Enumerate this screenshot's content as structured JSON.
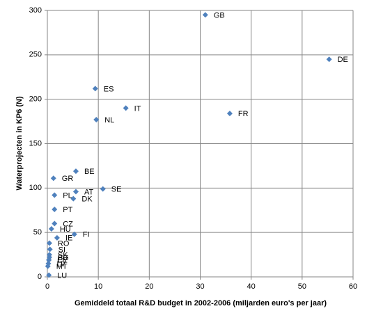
{
  "chart_data": {
    "type": "scatter",
    "x_label": "Gemiddeld totaal R&D budget in 2002-2006 (miljarden euro's per jaar)",
    "y_label": "Waterprojecten in KP6 (N)",
    "color": "#4f81bd",
    "grid": true,
    "xlim": [
      0,
      60
    ],
    "xticks": [
      0,
      10,
      20,
      30,
      40,
      50,
      60
    ],
    "ylim": [
      0,
      300
    ],
    "yticks": [
      0,
      50,
      100,
      150,
      200,
      250,
      300
    ],
    "labels": [
      "GB",
      "DE",
      "ES",
      "IT",
      "NL",
      "FR",
      "BE",
      "GR",
      "SE",
      "AT",
      "PL",
      "DK",
      "PT",
      "CZ",
      "HU",
      "FI",
      "IE",
      "RO",
      "SI",
      "SK",
      "BG",
      "EE",
      "CY",
      "LV",
      "MT",
      "LU"
    ],
    "x": [
      31.0,
      55.3,
      9.4,
      15.4,
      9.6,
      35.8,
      5.6,
      1.2,
      10.9,
      5.6,
      1.4,
      5.1,
      1.4,
      1.4,
      0.8,
      5.3,
      1.9,
      0.4,
      0.5,
      0.4,
      0.4,
      0.3,
      0.3,
      0.2,
      0.1,
      0.3
    ],
    "values": [
      295,
      245,
      212,
      190,
      177,
      184,
      119,
      111,
      99,
      96,
      92,
      88,
      76,
      60,
      54,
      48,
      44,
      38,
      31,
      25,
      22,
      19,
      19,
      15,
      12,
      2
    ]
  }
}
